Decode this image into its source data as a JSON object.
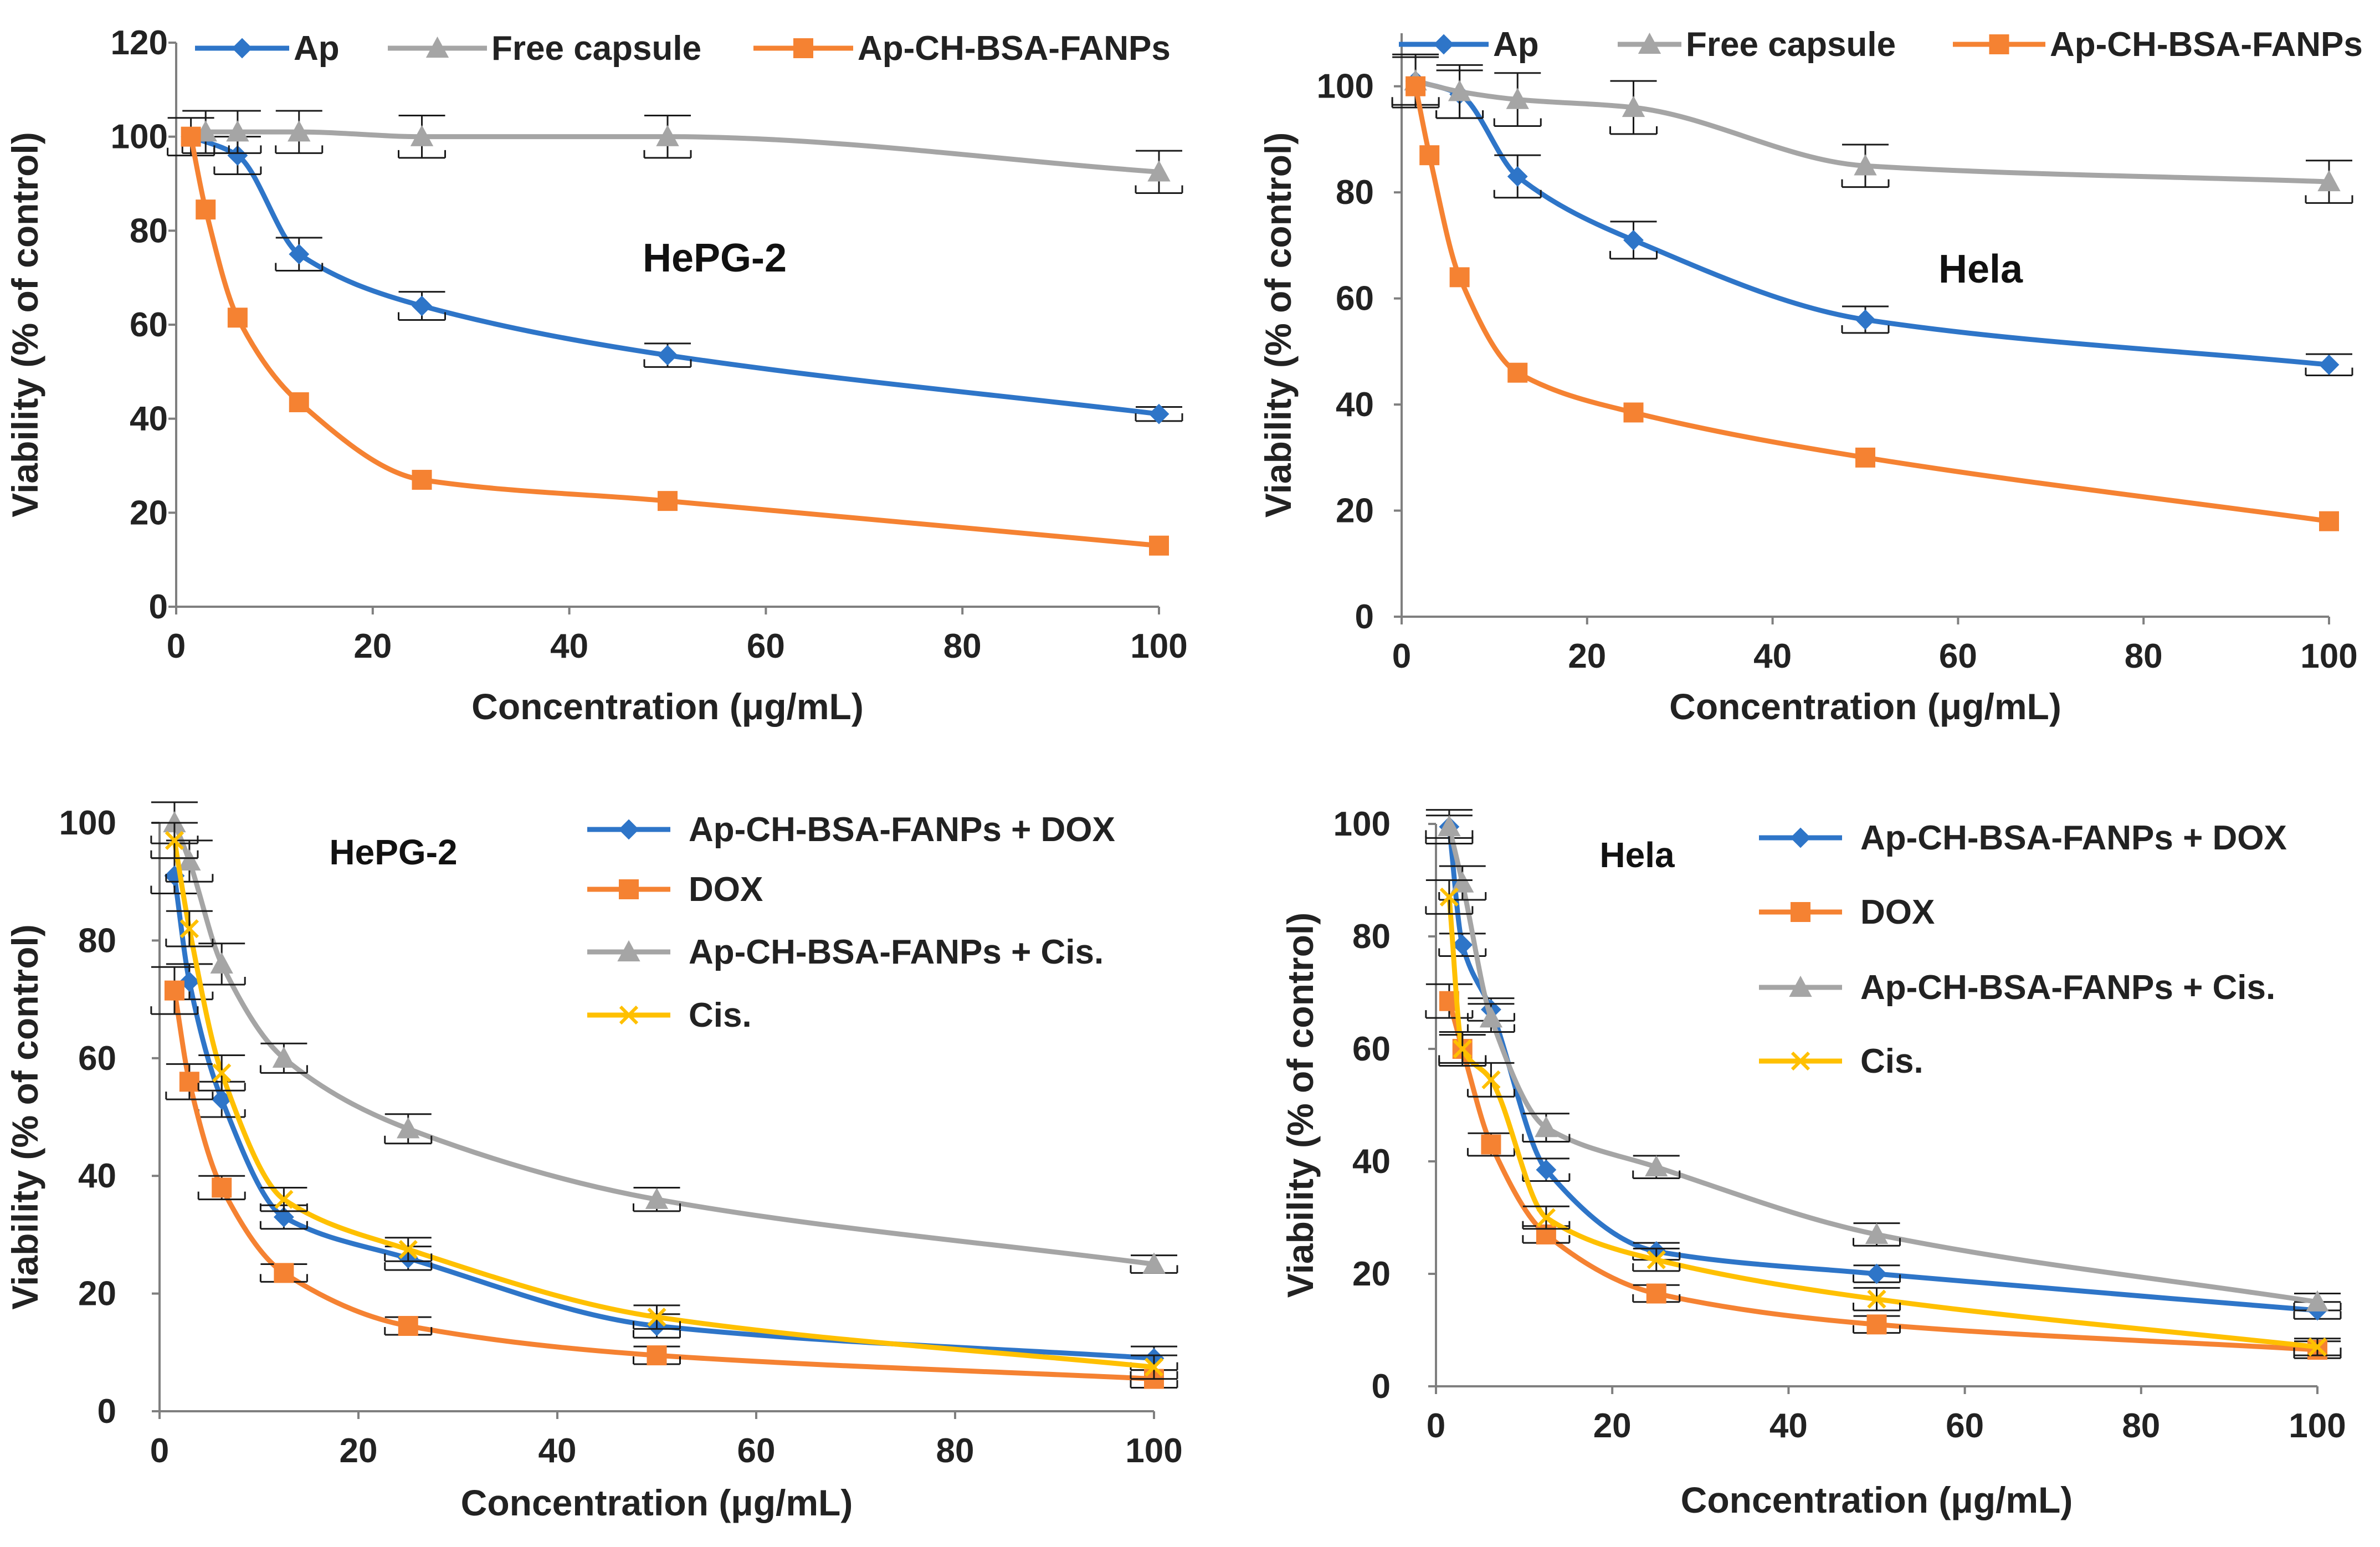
{
  "chart_data": [
    {
      "type": "line",
      "xlabel": "Concentration (μg/mL)",
      "ylabel": "Viability (% of control)",
      "annotation": "HePG-2",
      "xlim": [
        0,
        100
      ],
      "ylim": [
        0,
        120
      ],
      "xticks": [
        0,
        20,
        40,
        60,
        80,
        100
      ],
      "yticks": [
        0,
        20,
        40,
        60,
        80,
        100,
        120
      ],
      "legend_position": "top",
      "series": [
        {
          "name": "Ap",
          "color": "#2E75C8",
          "marker": "diamond",
          "x": [
            1.5,
            6.25,
            12.5,
            25,
            50,
            100
          ],
          "y": [
            100,
            96,
            75,
            64,
            53.5,
            41
          ],
          "err": [
            4,
            4,
            3.5,
            3,
            2.5,
            1.5
          ]
        },
        {
          "name": "Free capsule",
          "color": "#A5A5A5",
          "marker": "triangle",
          "x": [
            3,
            6.25,
            12.5,
            25,
            50,
            100
          ],
          "y": [
            101,
            101,
            101,
            100,
            100,
            92.5
          ],
          "err": [
            4.5,
            4.5,
            4.5,
            4.5,
            4.5,
            4.5
          ]
        },
        {
          "name": "Ap-CH-BSA-FANPs",
          "color": "#F58232",
          "marker": "square",
          "x": [
            1.5,
            3,
            6.25,
            12.5,
            25,
            50,
            100
          ],
          "y": [
            100,
            84.5,
            61.5,
            43.5,
            27,
            22.5,
            13
          ],
          "err": [
            0,
            0,
            0,
            0,
            0,
            0,
            0
          ]
        }
      ]
    },
    {
      "type": "line",
      "xlabel": "Concentration (μg/mL)",
      "ylabel": "Viability (% of control)",
      "annotation": "Hela",
      "xlim": [
        0,
        100
      ],
      "ylim": [
        0,
        110
      ],
      "xticks": [
        0,
        20,
        40,
        60,
        80,
        100
      ],
      "yticks": [
        0,
        20,
        40,
        60,
        80,
        100
      ],
      "legend_position": "top",
      "series": [
        {
          "name": "Ap",
          "color": "#2E75C8",
          "marker": "diamond",
          "x": [
            1.5,
            6.25,
            12.5,
            25,
            50,
            100
          ],
          "y": [
            101,
            98.5,
            83,
            71,
            56,
            47.5
          ],
          "err": [
            4.5,
            4.5,
            4,
            3.5,
            2.5,
            2
          ]
        },
        {
          "name": "Free capsule",
          "color": "#A5A5A5",
          "marker": "triangle",
          "x": [
            1.5,
            6.25,
            12.5,
            25,
            50,
            100
          ],
          "y": [
            101,
            99,
            97.5,
            96,
            85,
            82
          ],
          "err": [
            5,
            5,
            5,
            5,
            4,
            4
          ]
        },
        {
          "name": "Ap-CH-BSA-FANPs",
          "color": "#F58232",
          "marker": "square",
          "x": [
            1.5,
            3,
            6.25,
            12.5,
            25,
            50,
            100
          ],
          "y": [
            100,
            87,
            64,
            46,
            38.5,
            30,
            18
          ],
          "err": [
            0,
            0,
            0,
            0,
            0,
            0,
            0
          ]
        }
      ]
    },
    {
      "type": "line",
      "xlabel": "Concentration (μg/mL)",
      "ylabel": "Viability (% of control)",
      "annotation": "HePG-2",
      "xlim": [
        0,
        100
      ],
      "ylim": [
        0,
        100
      ],
      "xticks": [
        0,
        20,
        40,
        60,
        80,
        100
      ],
      "yticks": [
        0,
        20,
        40,
        60,
        80,
        100
      ],
      "legend_position": "top-right",
      "series": [
        {
          "name": "Ap-CH-BSA-FANPs + DOX",
          "color": "#2E75C8",
          "marker": "diamond",
          "x": [
            1.5,
            3,
            6.25,
            12.5,
            25,
            50,
            100
          ],
          "y": [
            91,
            73,
            53,
            33,
            26,
            14.5,
            9
          ],
          "err": [
            3,
            3,
            3,
            2,
            2,
            2,
            2
          ]
        },
        {
          "name": "DOX",
          "color": "#F58232",
          "marker": "square",
          "x": [
            1.5,
            3,
            6.25,
            12.5,
            25,
            50,
            100
          ],
          "y": [
            71.5,
            56,
            38,
            23.5,
            14.5,
            9.5,
            5.5
          ],
          "err": [
            4,
            3,
            2,
            1.5,
            1.5,
            1.5,
            1.5
          ]
        },
        {
          "name": "Ap-CH-BSA-FANPs + Cis.",
          "color": "#A5A5A5",
          "marker": "triangle",
          "x": [
            1.5,
            3,
            6.25,
            12.5,
            25,
            50,
            100
          ],
          "y": [
            100,
            93.5,
            76,
            60,
            48,
            36,
            25
          ],
          "err": [
            3.5,
            3.5,
            3.5,
            2.5,
            2.5,
            2,
            1.5
          ]
        },
        {
          "name": "Cis.",
          "color": "#FFC000",
          "marker": "x",
          "x": [
            1.5,
            3,
            6.25,
            12.5,
            25,
            50,
            100
          ],
          "y": [
            97,
            82,
            57.5,
            36,
            27.5,
            16,
            7.5
          ],
          "err": [
            3,
            3,
            3,
            2,
            2,
            2,
            2
          ]
        }
      ]
    },
    {
      "type": "line",
      "xlabel": "Concentration (μg/mL)",
      "ylabel": "Viability (% of control)",
      "annotation": "Hela",
      "xlim": [
        0,
        100
      ],
      "ylim": [
        0,
        100
      ],
      "xticks": [
        0,
        20,
        40,
        60,
        80,
        100
      ],
      "yticks": [
        0,
        20,
        40,
        60,
        80,
        100
      ],
      "legend_position": "top-right",
      "series": [
        {
          "name": "Ap-CH-BSA-FANPs + DOX",
          "color": "#2E75C8",
          "marker": "diamond",
          "x": [
            1.5,
            3,
            6.25,
            12.5,
            25,
            50,
            100
          ],
          "y": [
            99.5,
            78.5,
            67,
            38.5,
            24,
            20,
            13.5
          ],
          "err": [
            2,
            2,
            2,
            2,
            1.5,
            1.5,
            1.5
          ]
        },
        {
          "name": "DOX",
          "color": "#F58232",
          "marker": "square",
          "x": [
            1.5,
            3,
            6.25,
            12.5,
            25,
            50,
            100
          ],
          "y": [
            68.5,
            60,
            43,
            27,
            16.5,
            11,
            6.5
          ],
          "err": [
            3,
            2.5,
            2,
            1.5,
            1.5,
            1.5,
            1.5
          ]
        },
        {
          "name": "Ap-CH-BSA-FANPs + Cis.",
          "color": "#A5A5A5",
          "marker": "triangle",
          "x": [
            1.5,
            3,
            6.25,
            12.5,
            25,
            50,
            100
          ],
          "y": [
            99.5,
            89.5,
            65.5,
            46,
            39,
            27,
            15
          ],
          "err": [
            3,
            3,
            2.5,
            2.5,
            2,
            2,
            1.5
          ]
        },
        {
          "name": "Cis.",
          "color": "#FFC000",
          "marker": "x",
          "x": [
            1.5,
            3,
            6.25,
            12.5,
            25,
            50,
            100
          ],
          "y": [
            87,
            60,
            54.5,
            30,
            22.5,
            15.5,
            7
          ],
          "err": [
            3,
            3,
            3,
            2,
            2,
            2,
            1.5
          ]
        }
      ]
    }
  ]
}
